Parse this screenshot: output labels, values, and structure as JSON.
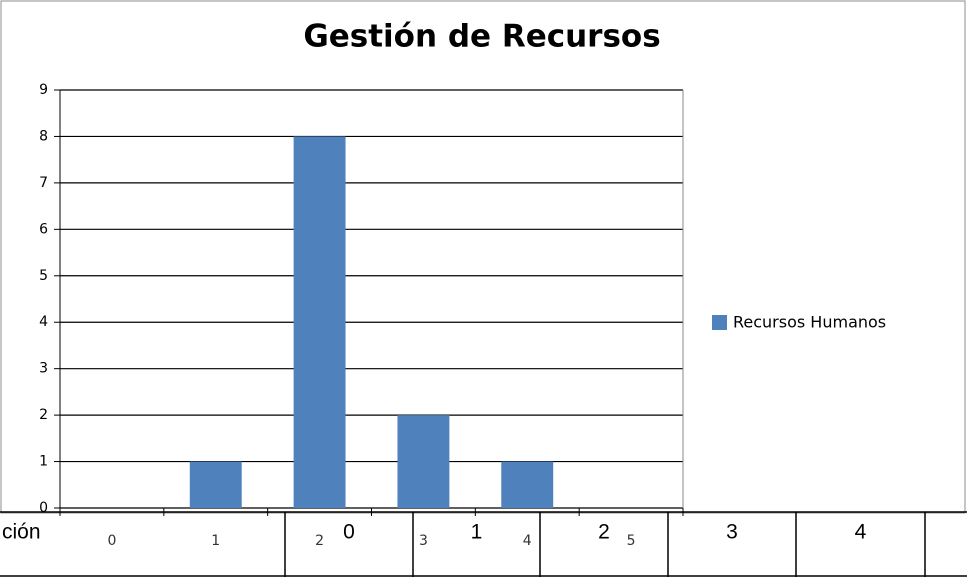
{
  "chart_data": {
    "type": "bar",
    "title": "Gestión de Recursos",
    "categories": [
      "0",
      "1",
      "2",
      "3",
      "4",
      "5"
    ],
    "series": [
      {
        "name": "Recursos Humanos",
        "color": "#4f81bd",
        "values": [
          0,
          1,
          8,
          2,
          1,
          0
        ]
      }
    ],
    "ylim": [
      0,
      9
    ],
    "yticks": [
      0,
      1,
      2,
      3,
      4,
      5,
      6,
      7,
      8,
      9
    ],
    "grid": true,
    "legend": "right"
  },
  "table": {
    "rows": [
      [
        "ción",
        "0",
        "1",
        "2",
        "3",
        "4"
      ]
    ]
  }
}
